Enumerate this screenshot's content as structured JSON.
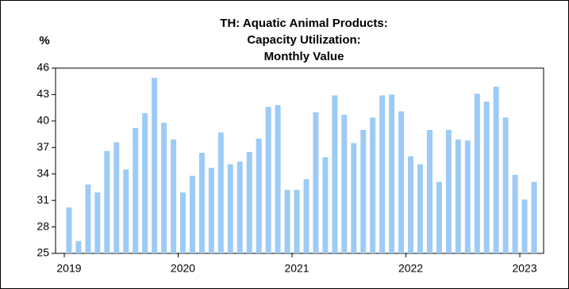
{
  "chart_data": {
    "type": "bar",
    "title": [
      "TH: Aquatic Animal Products:",
      "Capacity Utilization:",
      "Monthly Value"
    ],
    "y_label": "%",
    "categories": [
      "2019",
      null,
      null,
      null,
      null,
      null,
      null,
      null,
      null,
      null,
      null,
      null,
      "2020",
      null,
      null,
      null,
      null,
      null,
      null,
      null,
      null,
      null,
      null,
      null,
      "2021",
      null,
      null,
      null,
      null,
      null,
      null,
      null,
      null,
      null,
      null,
      null,
      "2022",
      null,
      null,
      null,
      null,
      null,
      null,
      null,
      null,
      null,
      null,
      null,
      "2023",
      null
    ],
    "values": [
      30.2,
      26.4,
      32.8,
      31.9,
      36.6,
      37.6,
      34.5,
      39.2,
      40.9,
      44.9,
      39.8,
      37.9,
      31.9,
      33.8,
      36.4,
      34.7,
      38.7,
      35.1,
      35.4,
      36.5,
      38.0,
      41.6,
      41.8,
      32.2,
      32.2,
      33.4,
      41.0,
      35.9,
      42.9,
      40.7,
      37.5,
      39.0,
      40.4,
      42.9,
      43.0,
      41.1,
      36.0,
      35.1,
      39.0,
      33.1,
      39.0,
      37.9,
      37.8,
      43.1,
      42.2,
      43.9,
      40.4,
      33.9,
      31.1,
      33.1
    ],
    "color": "#9dcbf6",
    "ylim": [
      25,
      46
    ],
    "yticks": [
      25,
      28,
      31,
      34,
      37,
      40,
      43,
      46
    ],
    "grid": false
  }
}
